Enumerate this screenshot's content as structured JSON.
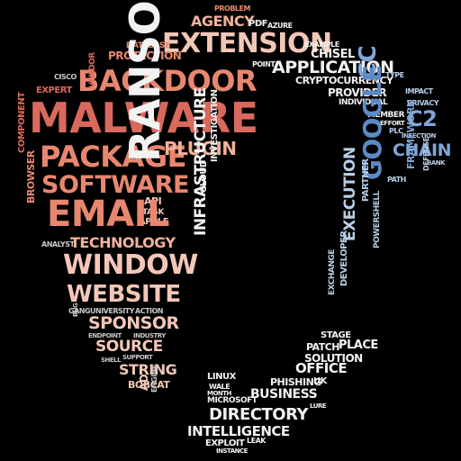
{
  "words": {
    "malware": "MALWARE",
    "backdoor": "BACKDOOR",
    "package": "PACKAGE",
    "software": "SOFTWARE",
    "email": "EMAIL",
    "window": "WINDOW",
    "website": "WEBSITE",
    "sponsor": "SPONSOR",
    "source": "SOURCE",
    "string": "STRING",
    "bobcat": "BOBCAT",
    "technology": "TECHNOLOGY",
    "plugin": "PLUGIN",
    "api": "API",
    "task": "TASK",
    "apple": "APPLE",
    "ransomware": "RANSOMWARE",
    "infrastructure": "INFRASTRUCTURE",
    "cloud": "CLOUD",
    "investigation": "INVESTIGATION",
    "extension": "EXTENSION",
    "agency": "AGENCY",
    "pdf": "PDF",
    "azure": "AZURE",
    "problem": "PROBLEM",
    "database": "DATABASE",
    "protection": "PROTECTION",
    "application": "APPLICATION",
    "chisel": "CHISEL",
    "example": "EXAMPLE",
    "point": "POINT",
    "cryptocurrency": "CRYPTOCURRENCY",
    "provider": "PROVIDER",
    "individual": "INDIVIDUAL",
    "cc": "CC",
    "c2": "C2",
    "member": "MEMBER",
    "effort": "EFFORT",
    "type": "TYPE",
    "impact": "IMPACT",
    "privacy": "PRIVACY",
    "chain": "CHAIN",
    "infection": "INFECTION",
    "plc": "PLC",
    "bank": "BANK",
    "google": "GOOGLE",
    "framework": "FRAMEWORK",
    "defense": "DEFENSE",
    "path": "PATH",
    "partner": "PARTNER",
    "execution": "EXECUTION",
    "powershell": "POWERSHELL",
    "developer": "DEVELOPER",
    "exchange": "EXCHANGE",
    "stage": "STAGE",
    "place": "PLACE",
    "patch": "PATCH",
    "solution": "SOLUTION",
    "office": "OFFICE",
    "phishing": "PHISHING",
    "uk": "UK",
    "business": "BUSINESS",
    "directory": "DIRECTORY",
    "intelligence": "INTELLIGENCE",
    "exploit": "EXPLOIT",
    "leak": "LEAK",
    "instance": "INSTANCE",
    "microsoft": "MICROSOFT",
    "linux": "LINUX",
    "wale": "WALE",
    "month": "MONTH",
    "ad": "AD",
    "engine": "ENGINE",
    "cisco": "CISCO",
    "expert": "EXPERT",
    "vendor": "VENDOR",
    "component": "COMPONENT",
    "browser": "BROWSER",
    "analyst": "ANALYST",
    "gang": "GANG",
    "university": "UNIVERSITY",
    "action": "ACTION",
    "endpoint": "ENDPOINT",
    "industry": "INDUSTRY",
    "shell": "SHELL",
    "support": "SUPPORT",
    "bug": "BUG",
    "lure": "LURE"
  },
  "colors": {
    "red": "#d9695c",
    "salmon": "#e8876f",
    "peach": "#f2b19a",
    "white": "#f2f2f2",
    "blue": "#7fa6d8"
  }
}
